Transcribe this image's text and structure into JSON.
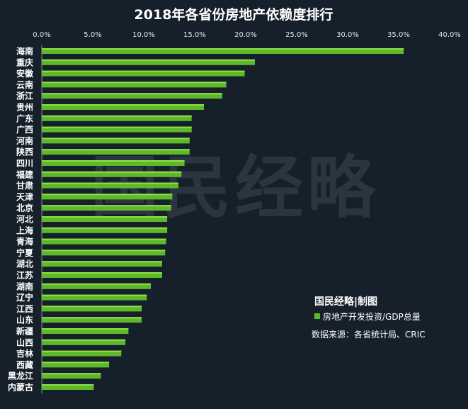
{
  "colors": {
    "background": "#15202b",
    "bar": "#5fb82a",
    "bar_highlight": "#8fe04a",
    "text": "#ffffff",
    "tick_text": "#d8e4ee",
    "axis_line": "#8a96a3",
    "watermark": "#2a3540"
  },
  "chart_data": {
    "type": "bar",
    "orientation": "horizontal",
    "title": "2018年各省份房地产依赖度排行",
    "categories": [
      "海南",
      "重庆",
      "安徽",
      "云南",
      "浙江",
      "贵州",
      "广东",
      "广西",
      "河南",
      "陕西",
      "四川",
      "福建",
      "甘肃",
      "天津",
      "北京",
      "河北",
      "上海",
      "青海",
      "宁夏",
      "湖北",
      "江苏",
      "湖南",
      "辽宁",
      "江西",
      "山东",
      "新疆",
      "山西",
      "吉林",
      "西藏",
      "黑龙江",
      "内蒙古"
    ],
    "series": [
      {
        "name": "房地产开发投资/GDP总量",
        "values": [
          35.5,
          20.9,
          19.9,
          18.1,
          17.7,
          15.9,
          14.7,
          14.7,
          14.5,
          14.5,
          14.0,
          13.7,
          13.4,
          12.8,
          12.7,
          12.3,
          12.3,
          12.2,
          12.1,
          11.8,
          11.8,
          10.7,
          10.3,
          9.8,
          9.8,
          8.5,
          8.2,
          7.8,
          6.6,
          5.8,
          5.1
        ]
      }
    ],
    "xlim": [
      0,
      40
    ],
    "x_ticks": [
      "0.0%",
      "5.0%",
      "10.0%",
      "15.0%",
      "20.0%",
      "25.0%",
      "30.0%",
      "35.0%",
      "40.0%"
    ],
    "xlabel": "",
    "ylabel": "",
    "grid": false,
    "legend_position": "bottom-right"
  },
  "credit": "国民经略|制图",
  "legend_label": "房地产开发投资/GDP总量",
  "source": "数据来源：各省统计局、CRIC",
  "watermark": "国民经略"
}
